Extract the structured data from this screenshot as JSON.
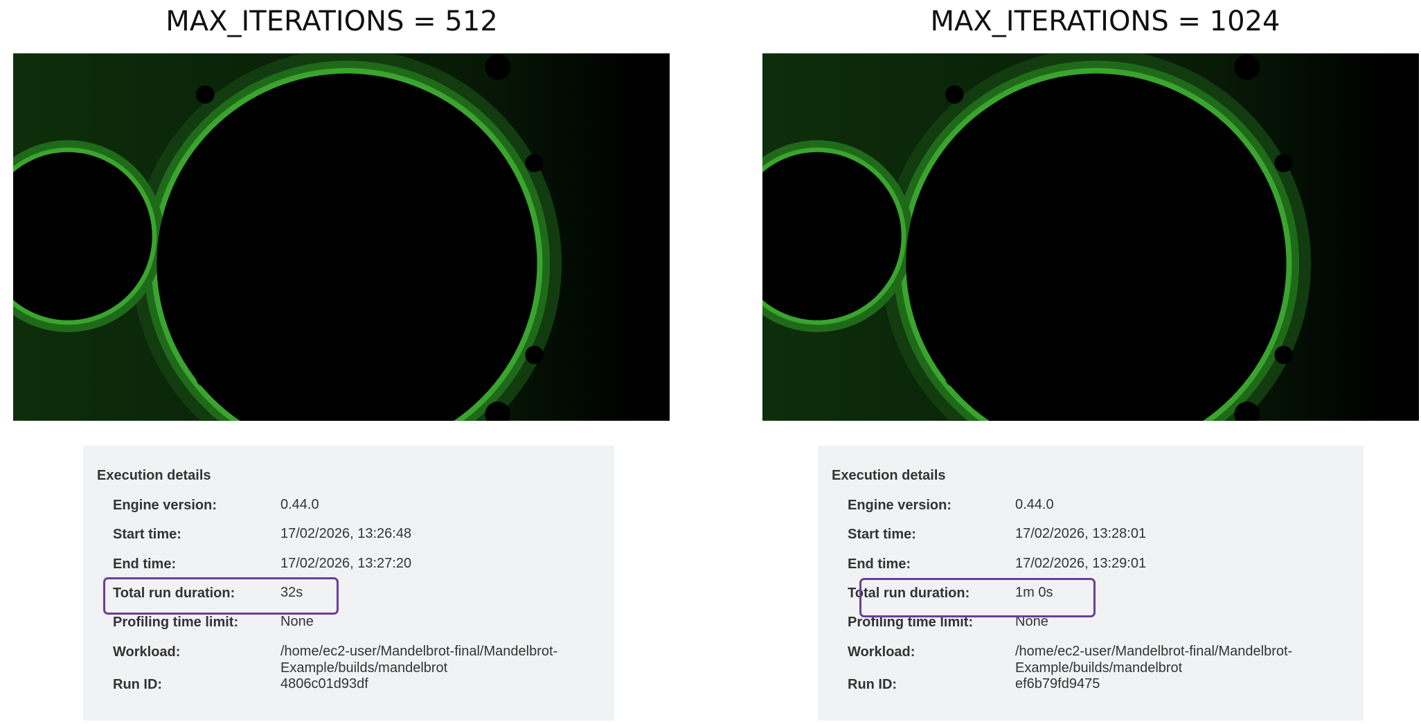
{
  "panels": [
    {
      "title": "MAX_ITERATIONS = 512",
      "details_heading": "Execution details",
      "rows": [
        {
          "label": "Engine version:",
          "value": "0.44.0"
        },
        {
          "label": "Start time:",
          "value": "17/02/2026, 13:26:48"
        },
        {
          "label": "End time:",
          "value": "17/02/2026, 13:27:20"
        },
        {
          "label": "Total run duration:",
          "value": "32s"
        },
        {
          "label": "Profiling time limit:",
          "value": "None"
        },
        {
          "label": "Workload:",
          "value": "/home/ec2-user/Mandelbrot-final/Mandelbrot-Example/builds/mandelbrot"
        },
        {
          "label": "Run ID:",
          "value": "4806c01d93df"
        }
      ]
    },
    {
      "title": "MAX_ITERATIONS = 1024",
      "details_heading": "Execution details",
      "rows": [
        {
          "label": "Engine version:",
          "value": "0.44.0"
        },
        {
          "label": "Start time:",
          "value": "17/02/2026, 13:28:01"
        },
        {
          "label": "End time:",
          "value": "17/02/2026, 13:29:01"
        },
        {
          "label": "Total run duration:",
          "value": "1m 0s"
        },
        {
          "label": "Profiling time limit:",
          "value": "None"
        },
        {
          "label": "Workload:",
          "value": "/home/ec2-user/Mandelbrot-final/Mandelbrot-Example/builds/mandelbrot"
        },
        {
          "label": "Run ID:",
          "value": "ef6b79fd9475"
        }
      ]
    }
  ]
}
